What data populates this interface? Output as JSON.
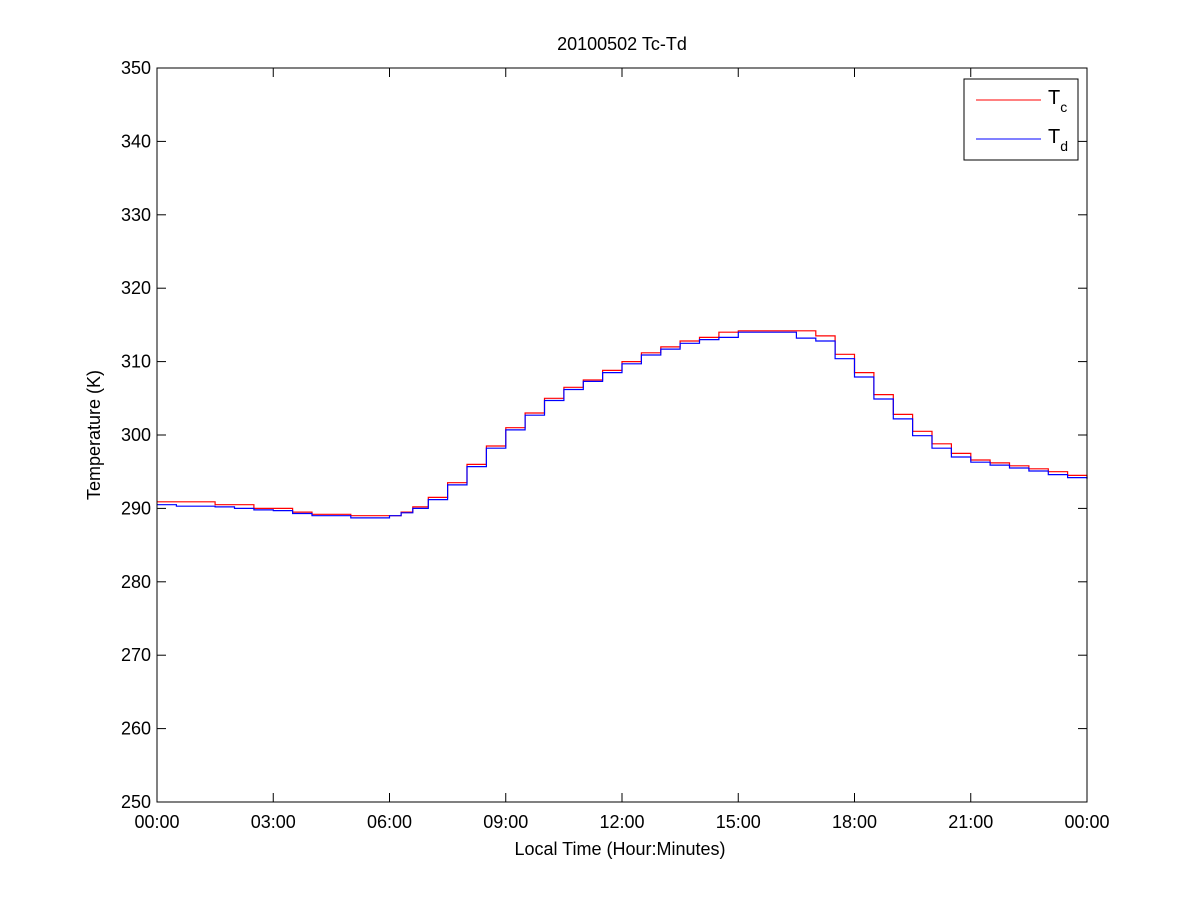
{
  "chart_data": {
    "type": "line",
    "title": "20100502 Tc-Td",
    "xlabel": "Local Time (Hour:Minutes)",
    "ylabel": "Temperature (K)",
    "xlim": [
      0,
      24
    ],
    "ylim": [
      250,
      350
    ],
    "x_ticks": [
      0,
      3,
      6,
      9,
      12,
      15,
      18,
      21,
      24
    ],
    "x_tick_labels": [
      "00:00",
      "03:00",
      "06:00",
      "09:00",
      "12:00",
      "15:00",
      "18:00",
      "21:00",
      "00:00"
    ],
    "y_ticks": [
      250,
      260,
      270,
      280,
      290,
      300,
      310,
      320,
      330,
      340,
      350
    ],
    "y_tick_labels": [
      "250",
      "260",
      "270",
      "280",
      "290",
      "300",
      "310",
      "320",
      "330",
      "340",
      "350"
    ],
    "grid": false,
    "legend_position": "top-right",
    "legend": [
      {
        "main": "T",
        "sub": "c",
        "color": "#ff0000"
      },
      {
        "main": "T",
        "sub": "d",
        "color": "#0000ff"
      }
    ],
    "series": [
      {
        "color": "#ff0000",
        "points": [
          [
            0.0,
            290.9
          ],
          [
            0.5,
            290.9
          ],
          [
            1.0,
            290.9
          ],
          [
            1.5,
            290.5
          ],
          [
            2.0,
            290.5
          ],
          [
            2.5,
            290.0
          ],
          [
            3.0,
            290.0
          ],
          [
            3.5,
            289.5
          ],
          [
            4.0,
            289.2
          ],
          [
            4.5,
            289.2
          ],
          [
            5.0,
            289.0
          ],
          [
            5.5,
            289.0
          ],
          [
            6.0,
            289.0
          ],
          [
            6.3,
            289.5
          ],
          [
            6.6,
            290.2
          ],
          [
            7.0,
            291.5
          ],
          [
            7.5,
            293.5
          ],
          [
            8.0,
            296.0
          ],
          [
            8.5,
            298.5
          ],
          [
            9.0,
            301.0
          ],
          [
            9.5,
            303.0
          ],
          [
            10.0,
            305.0
          ],
          [
            10.5,
            306.5
          ],
          [
            11.0,
            307.5
          ],
          [
            11.5,
            308.8
          ],
          [
            12.0,
            310.0
          ],
          [
            12.5,
            311.2
          ],
          [
            13.0,
            312.0
          ],
          [
            13.5,
            312.8
          ],
          [
            14.0,
            313.3
          ],
          [
            14.5,
            314.0
          ],
          [
            15.0,
            314.2
          ],
          [
            15.5,
            314.2
          ],
          [
            16.0,
            314.2
          ],
          [
            16.5,
            314.2
          ],
          [
            17.0,
            313.5
          ],
          [
            17.5,
            311.0
          ],
          [
            18.0,
            308.5
          ],
          [
            18.5,
            305.5
          ],
          [
            19.0,
            302.8
          ],
          [
            19.5,
            300.5
          ],
          [
            20.0,
            298.8
          ],
          [
            20.5,
            297.5
          ],
          [
            21.0,
            296.6
          ],
          [
            21.5,
            296.2
          ],
          [
            22.0,
            295.8
          ],
          [
            22.5,
            295.4
          ],
          [
            23.0,
            295.0
          ],
          [
            23.5,
            294.5
          ],
          [
            24.0,
            294.1
          ]
        ]
      },
      {
        "color": "#0000ff",
        "points": [
          [
            0.0,
            290.5
          ],
          [
            0.5,
            290.3
          ],
          [
            1.0,
            290.3
          ],
          [
            1.5,
            290.2
          ],
          [
            2.0,
            290.0
          ],
          [
            2.5,
            289.8
          ],
          [
            3.0,
            289.7
          ],
          [
            3.5,
            289.3
          ],
          [
            4.0,
            289.0
          ],
          [
            4.5,
            289.0
          ],
          [
            5.0,
            288.7
          ],
          [
            5.5,
            288.7
          ],
          [
            6.0,
            289.0
          ],
          [
            6.3,
            289.4
          ],
          [
            6.6,
            290.0
          ],
          [
            7.0,
            291.2
          ],
          [
            7.5,
            293.2
          ],
          [
            8.0,
            295.7
          ],
          [
            8.5,
            298.2
          ],
          [
            9.0,
            300.7
          ],
          [
            9.5,
            302.7
          ],
          [
            10.0,
            304.7
          ],
          [
            10.5,
            306.2
          ],
          [
            11.0,
            307.3
          ],
          [
            11.5,
            308.5
          ],
          [
            12.0,
            309.7
          ],
          [
            12.5,
            310.9
          ],
          [
            13.0,
            311.7
          ],
          [
            13.5,
            312.5
          ],
          [
            14.0,
            313.0
          ],
          [
            14.5,
            313.3
          ],
          [
            15.0,
            314.0
          ],
          [
            15.5,
            314.0
          ],
          [
            16.0,
            314.0
          ],
          [
            16.5,
            313.2
          ],
          [
            17.0,
            312.8
          ],
          [
            17.5,
            310.4
          ],
          [
            18.0,
            307.9
          ],
          [
            18.5,
            304.9
          ],
          [
            19.0,
            302.2
          ],
          [
            19.5,
            299.9
          ],
          [
            20.0,
            298.2
          ],
          [
            20.5,
            297.0
          ],
          [
            21.0,
            296.3
          ],
          [
            21.5,
            295.9
          ],
          [
            22.0,
            295.5
          ],
          [
            22.5,
            295.1
          ],
          [
            23.0,
            294.6
          ],
          [
            23.5,
            294.2
          ],
          [
            24.0,
            294.0
          ]
        ]
      }
    ]
  }
}
